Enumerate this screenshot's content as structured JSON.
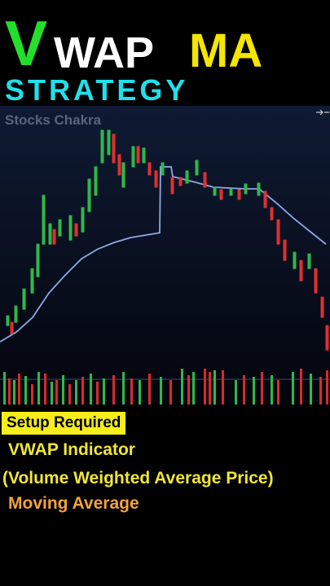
{
  "header": {
    "title_parts": [
      "V",
      "WAP",
      "MA"
    ],
    "subtitle": "STRATEGY"
  },
  "chart": {
    "watermark": "Stocks Chakra"
  },
  "notes": {
    "heading": "Setup Required",
    "lines": [
      "VWAP Indicator",
      "(Volume Weighted Average Price)",
      "Moving Average"
    ]
  }
}
